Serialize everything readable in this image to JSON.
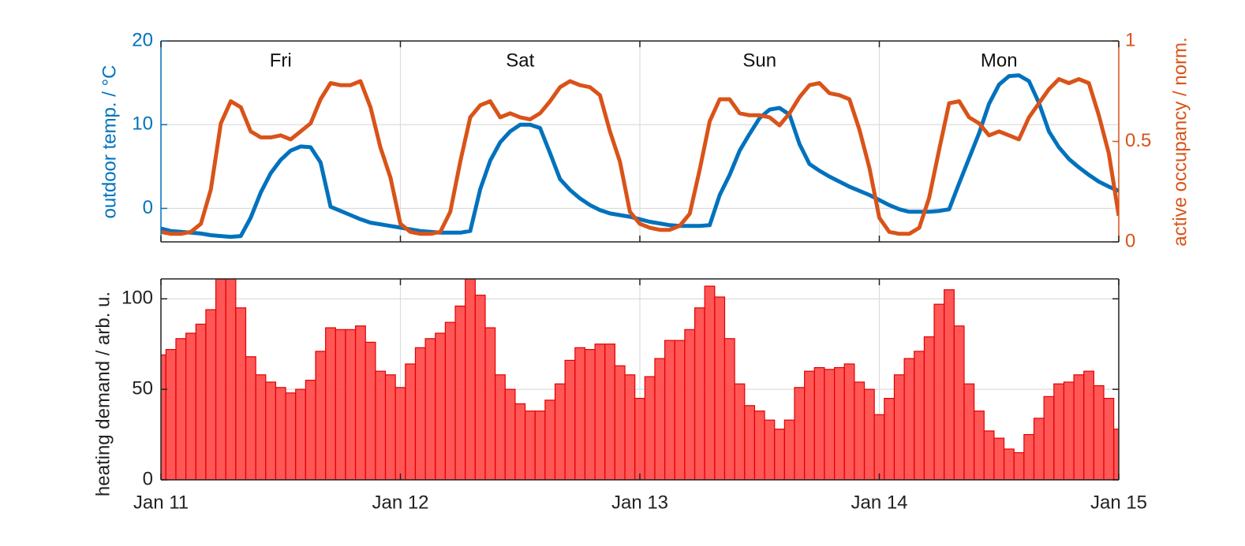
{
  "chart_data": [
    {
      "type": "line",
      "x": [
        0,
        1,
        2,
        3,
        4,
        5,
        6,
        7,
        8,
        9,
        10,
        11,
        12,
        13,
        14,
        15,
        16,
        17,
        18,
        19,
        20,
        21,
        22,
        23,
        24,
        25,
        26,
        27,
        28,
        29,
        30,
        31,
        32,
        33,
        34,
        35,
        36,
        37,
        38,
        39,
        40,
        41,
        42,
        43,
        44,
        45,
        46,
        47,
        48,
        49,
        50,
        51,
        52,
        53,
        54,
        55,
        56,
        57,
        58,
        59,
        60,
        61,
        62,
        63,
        64,
        65,
        66,
        67,
        68,
        69,
        70,
        71,
        72,
        73,
        74,
        75,
        76,
        77,
        78,
        79,
        80,
        81,
        82,
        83,
        84,
        85,
        86,
        87,
        88,
        89,
        90,
        91,
        92,
        93,
        94,
        95,
        96
      ],
      "xlim": [
        0,
        96
      ],
      "xticks": [
        0,
        24,
        48,
        72,
        96
      ],
      "grid": true,
      "ylim": [
        -4,
        20
      ],
      "yticks": [
        0,
        10,
        20
      ],
      "ylabel": "outdoor temp. / °C",
      "y2lim": [
        0,
        1
      ],
      "y2ticks": [
        0,
        0.5,
        1
      ],
      "y2label": "active occupancy / norm.",
      "annotations": [
        {
          "text": "Fri",
          "x": 12
        },
        {
          "text": "Sat",
          "x": 36
        },
        {
          "text": "Sun",
          "x": 60
        },
        {
          "text": "Mon",
          "x": 84
        }
      ],
      "series": [
        {
          "color": "#0072BD",
          "values": [
            -2.4,
            -2.7,
            -2.8,
            -2.9,
            -3.0,
            -3.2,
            -3.3,
            -3.4,
            -3.3,
            -1.1,
            1.9,
            4.2,
            5.8,
            6.9,
            7.4,
            7.3,
            5.5,
            0.2,
            -0.3,
            -0.8,
            -1.3,
            -1.7,
            -1.9,
            -2.1,
            -2.3,
            -2.5,
            -2.7,
            -2.8,
            -2.9,
            -2.9,
            -2.9,
            -2.7,
            2.3,
            5.7,
            7.9,
            9.2,
            10.0,
            10.0,
            9.6,
            6.6,
            3.5,
            2.2,
            1.2,
            0.4,
            -0.2,
            -0.6,
            -0.8,
            -1.0,
            -1.3,
            -1.6,
            -1.8,
            -2.0,
            -2.1,
            -2.1,
            -2.1,
            -2.0,
            1.6,
            4.0,
            6.9,
            8.9,
            10.8,
            11.8,
            12.0,
            11.2,
            7.7,
            5.3,
            4.5,
            3.8,
            3.2,
            2.6,
            2.1,
            1.6,
            1.0,
            0.4,
            -0.1,
            -0.4,
            -0.4,
            -0.4,
            -0.3,
            -0.1,
            3.0,
            6.0,
            9.0,
            12.5,
            14.8,
            15.8,
            15.9,
            15.2,
            12.6,
            9.2,
            7.3,
            5.9,
            4.9,
            4.0,
            3.2,
            2.6,
            2.1
          ]
        },
        {
          "color": "#D95319",
          "axis": "y2",
          "values": [
            0.05,
            0.04,
            0.04,
            0.05,
            0.09,
            0.26,
            0.59,
            0.7,
            0.67,
            0.55,
            0.52,
            0.52,
            0.53,
            0.51,
            0.55,
            0.59,
            0.71,
            0.79,
            0.78,
            0.78,
            0.8,
            0.67,
            0.47,
            0.32,
            0.09,
            0.05,
            0.04,
            0.04,
            0.05,
            0.15,
            0.4,
            0.62,
            0.68,
            0.7,
            0.62,
            0.64,
            0.62,
            0.61,
            0.64,
            0.7,
            0.77,
            0.8,
            0.78,
            0.77,
            0.73,
            0.55,
            0.4,
            0.15,
            0.09,
            0.07,
            0.06,
            0.06,
            0.08,
            0.14,
            0.36,
            0.6,
            0.71,
            0.71,
            0.64,
            0.63,
            0.63,
            0.62,
            0.58,
            0.64,
            0.72,
            0.78,
            0.79,
            0.74,
            0.73,
            0.71,
            0.56,
            0.37,
            0.12,
            0.05,
            0.04,
            0.04,
            0.07,
            0.22,
            0.46,
            0.69,
            0.7,
            0.62,
            0.59,
            0.53,
            0.55,
            0.53,
            0.51,
            0.62,
            0.69,
            0.76,
            0.81,
            0.79,
            0.81,
            0.79,
            0.63,
            0.44,
            0.13
          ]
        }
      ]
    },
    {
      "type": "histogram",
      "bins": [
        -0.5,
        0.5,
        1.5,
        2.5,
        3.5,
        4.5,
        5.5,
        6.5,
        7.5,
        8.5,
        9.5,
        10.5,
        11.5,
        12.5,
        13.5,
        14.5,
        15.5,
        16.5,
        17.5,
        18.5,
        19.5,
        20.5,
        21.5,
        22.5,
        23.5,
        24.5,
        25.5,
        26.5,
        27.5,
        28.5,
        29.5,
        30.5,
        31.5,
        32.5,
        33.5,
        34.5,
        35.5,
        36.5,
        37.5,
        38.5,
        39.5,
        40.5,
        41.5,
        42.5,
        43.5,
        44.5,
        45.5,
        46.5,
        47.5,
        48.5,
        49.5,
        50.5,
        51.5,
        52.5,
        53.5,
        54.5,
        55.5,
        56.5,
        57.5,
        58.5,
        59.5,
        60.5,
        61.5,
        62.5,
        63.5,
        64.5,
        65.5,
        66.5,
        67.5,
        68.5,
        69.5,
        70.5,
        71.5,
        72.5,
        73.5,
        74.5,
        75.5,
        76.5,
        77.5,
        78.5,
        79.5,
        80.5,
        81.5,
        82.5,
        83.5,
        84.5,
        85.5,
        86.5,
        87.5,
        88.5,
        89.5,
        90.5,
        91.5,
        92.5,
        93.5,
        94.5,
        95.5,
        96.5
      ],
      "values": [
        69,
        72,
        78,
        81,
        86,
        94,
        111,
        111,
        95,
        68,
        58,
        54,
        51,
        48,
        50,
        55,
        71,
        84,
        83,
        83,
        85,
        76,
        60,
        58,
        51,
        64,
        73,
        78,
        81,
        87,
        96,
        111,
        102,
        84,
        58,
        50,
        42,
        38,
        38,
        44,
        53,
        66,
        73,
        72,
        75,
        75,
        63,
        58,
        45,
        57,
        67,
        77,
        77,
        83,
        95,
        107,
        101,
        78,
        53,
        41,
        38,
        33,
        28,
        33,
        51,
        60,
        62,
        61,
        62,
        64,
        54,
        50,
        36,
        45,
        58,
        67,
        71,
        79,
        97,
        105,
        85,
        53,
        38,
        27,
        23,
        17,
        15,
        25,
        34,
        46,
        53,
        54,
        58,
        60,
        52,
        45,
        28
      ],
      "color": "#ff4444",
      "xlim": [
        0,
        96
      ],
      "xticks": [
        {
          "value": 0,
          "label": "Jan 11"
        },
        {
          "value": 24,
          "label": "Jan 12"
        },
        {
          "value": 48,
          "label": "Jan 13"
        },
        {
          "value": 72,
          "label": "Jan 14"
        },
        {
          "value": 96,
          "label": "Jan 15"
        }
      ],
      "ylim": [
        0,
        111
      ],
      "yticks": [
        0,
        50,
        100
      ],
      "grid": true,
      "ylabel": "heating demand / arb. u."
    }
  ]
}
